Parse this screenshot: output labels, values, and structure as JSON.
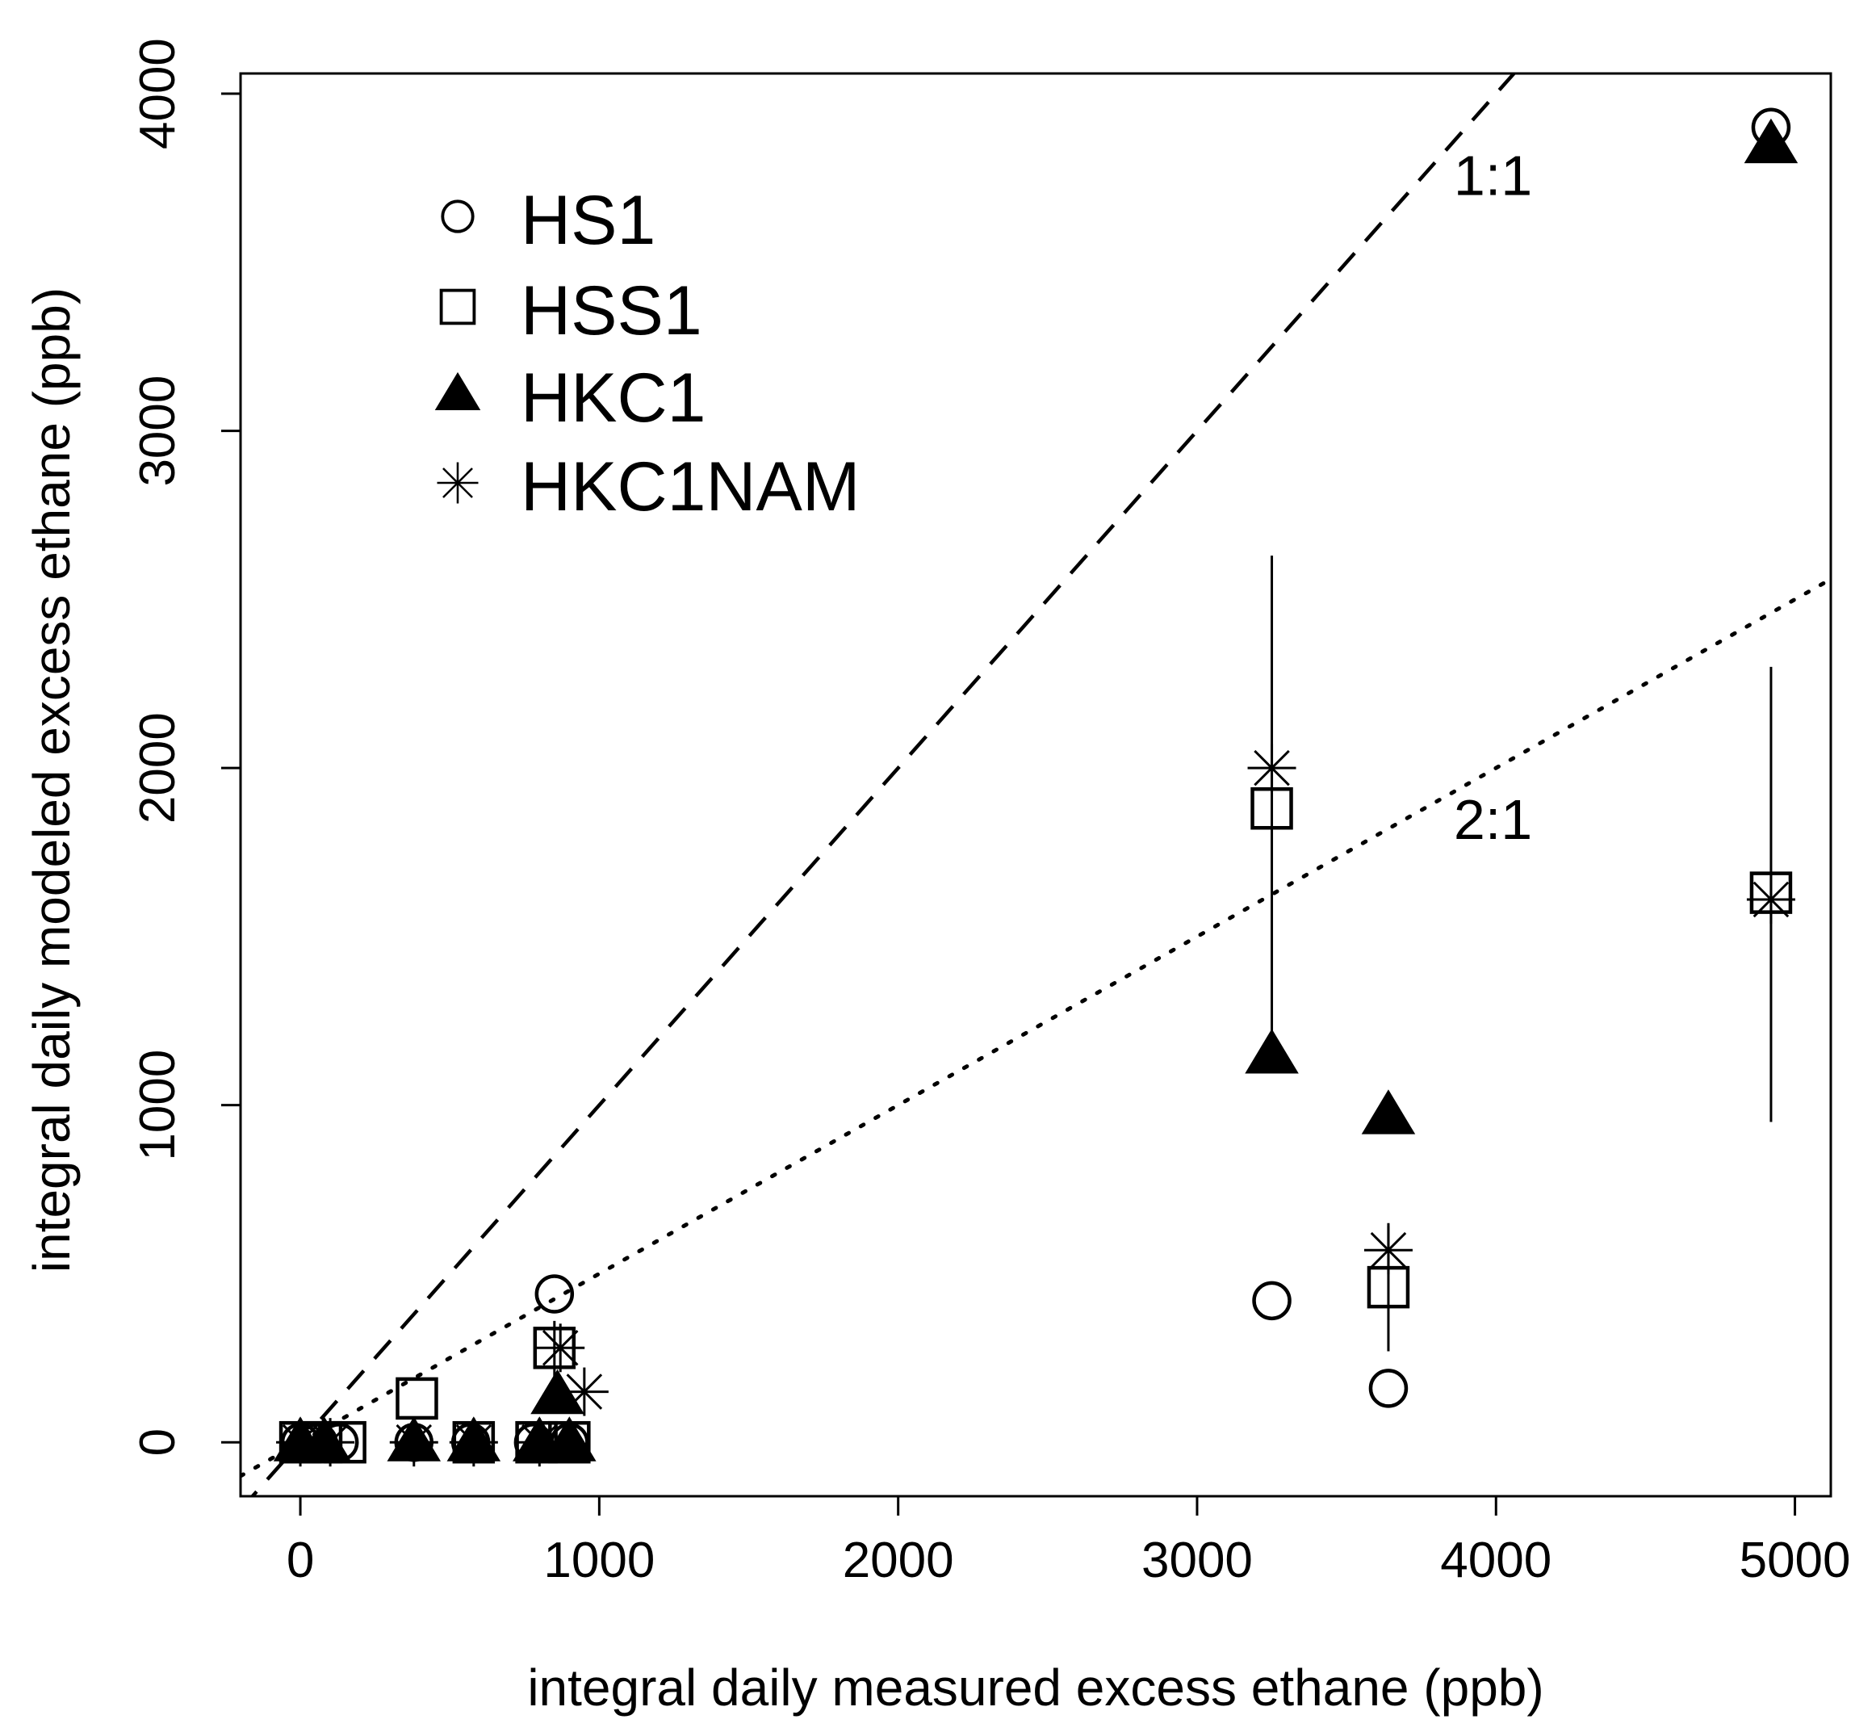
{
  "chart_data": {
    "type": "scatter",
    "xlabel": "integral daily measured excess ethane (ppb)",
    "ylabel": "integral daily modeled excess ethane (ppb)",
    "xlim": [
      -200,
      5120
    ],
    "ylim": [
      -160,
      4060
    ],
    "x_ticks": [
      0,
      1000,
      2000,
      3000,
      4000,
      5000
    ],
    "y_ticks": [
      0,
      1000,
      2000,
      3000,
      4000
    ],
    "x_tick_labels": [
      "0",
      "1000",
      "2000",
      "3000",
      "4000",
      "5000"
    ],
    "y_tick_labels": [
      "0",
      "1000",
      "2000",
      "3000",
      "4000"
    ],
    "legend_position": "top-left",
    "reference_lines": [
      {
        "label": "1:1",
        "slope": 1,
        "style": "dashed",
        "label_at": [
          3990,
          3700
        ]
      },
      {
        "label": "2:1",
        "slope": 0.5,
        "style": "dotted",
        "label_at": [
          3990,
          1790
        ]
      }
    ],
    "error_bars": [
      {
        "x": 3250,
        "low": 1150,
        "high": 2630
      },
      {
        "x": 4920,
        "low": 950,
        "high": 2300
      },
      {
        "x": 3640,
        "low": 270,
        "high": 650
      },
      {
        "x": 850,
        "low": 170,
        "high": 360
      }
    ],
    "series": [
      {
        "name": "HS1",
        "marker": "open-circle",
        "x": [
          0,
          60,
          130,
          380,
          570,
          780,
          850,
          900,
          3250,
          3640,
          4920
        ],
        "y": [
          0,
          0,
          0,
          0,
          0,
          0,
          440,
          0,
          420,
          160,
          3900
        ]
      },
      {
        "name": "HSS1",
        "marker": "open-square",
        "x": [
          0,
          70,
          150,
          390,
          580,
          790,
          850,
          900,
          3250,
          3640,
          4920
        ],
        "y": [
          0,
          0,
          0,
          130,
          0,
          0,
          280,
          0,
          1880,
          460,
          1630
        ]
      },
      {
        "name": "HKC1",
        "marker": "filled-triangle",
        "x": [
          0,
          80,
          380,
          580,
          800,
          860,
          900,
          3250,
          3640,
          4920
        ],
        "y": [
          0,
          0,
          0,
          0,
          0,
          140,
          0,
          1150,
          970,
          3850
        ]
      },
      {
        "name": "HKC1NAM",
        "marker": "asterisk",
        "x": [
          0,
          100,
          380,
          580,
          800,
          870,
          950,
          3250,
          3640,
          4920
        ],
        "y": [
          0,
          0,
          0,
          0,
          0,
          280,
          150,
          2000,
          570,
          1610
        ]
      }
    ]
  }
}
